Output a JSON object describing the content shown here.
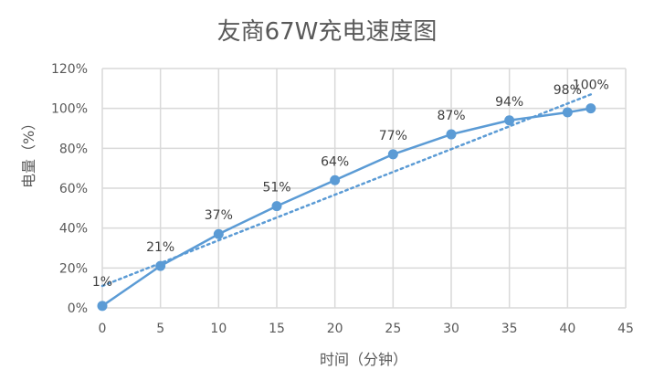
{
  "chart_data": {
    "type": "line",
    "title": "友商67W充电速度图",
    "xlabel": "时间（分钟）",
    "ylabel": "电量（%）",
    "x": [
      0,
      5,
      10,
      15,
      20,
      25,
      30,
      35,
      40,
      42
    ],
    "series": [
      {
        "name": "电量",
        "values": [
          1,
          21,
          37,
          51,
          64,
          77,
          87,
          94,
          98,
          100
        ],
        "data_labels": [
          "1%",
          "21%",
          "37%",
          "51%",
          "64%",
          "77%",
          "87%",
          "94%",
          "98%",
          "100%"
        ],
        "color": "#5B9BD5",
        "marker": "circle"
      },
      {
        "name": "线性趋势线",
        "type": "trendline-linear",
        "style": "dotted",
        "color": "#5B9BD5",
        "start": [
          0,
          11
        ],
        "end": [
          42,
          107
        ]
      }
    ],
    "xlim": [
      0,
      45
    ],
    "ylim": [
      0,
      120
    ],
    "x_ticks": [
      "0",
      "5",
      "10",
      "15",
      "20",
      "25",
      "30",
      "35",
      "40",
      "45"
    ],
    "y_ticks": [
      "0%",
      "20%",
      "40%",
      "60%",
      "80%",
      "100%",
      "120%"
    ],
    "grid": true,
    "legend": "none"
  }
}
